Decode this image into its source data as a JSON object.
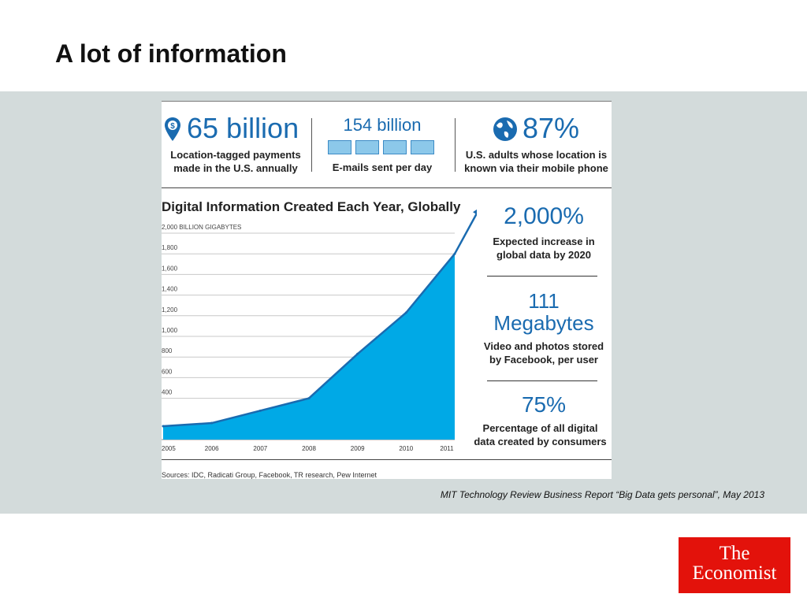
{
  "slide": {
    "title": "A lot of information",
    "credit": "MIT Technology Review Business Report “Big Data gets personal”, May 2013"
  },
  "stats": {
    "payments": {
      "value": "65 billion",
      "caption_line1": "Location-tagged payments",
      "caption_line2": "made in the U.S. annually",
      "icon": "location-pin-icon"
    },
    "emails": {
      "value": "154 billion",
      "caption": "E-mails sent per day",
      "icon": "envelope-icon"
    },
    "adults": {
      "value": "87%",
      "caption_line1": "U.S. adults whose location is",
      "caption_line2": "known via their mobile phone",
      "icon": "globe-icon"
    },
    "increase": {
      "value": "2,000%",
      "caption_line1": "Expected increase in",
      "caption_line2": "global data by 2020"
    },
    "megabytes": {
      "value_line1": "111",
      "value_line2": "Megabytes",
      "caption_line1": "Video and photos stored",
      "caption_line2": "by Facebook, per user"
    },
    "consumers": {
      "value": "75%",
      "caption_line1": "Percentage of all digital",
      "caption_line2": "data created by consumers"
    }
  },
  "chart_data": {
    "type": "area",
    "title": "Digital Information Created Each Year, Globally",
    "ylabel": "2,000 BILLION GIGABYTES",
    "x": [
      "2005",
      "2006",
      "2007",
      "2008",
      "2009",
      "2010",
      "2011"
    ],
    "values": [
      130,
      160,
      280,
      400,
      830,
      1230,
      1800
    ],
    "ylim": [
      0,
      2000
    ],
    "yticks": [
      "2,000 BILLION GIGABYTES",
      "1,800",
      "1,600",
      "1,400",
      "1,200",
      "1,000",
      "800",
      "600",
      "400"
    ],
    "ytick_values": [
      2000,
      1800,
      1600,
      1400,
      1200,
      1000,
      800,
      600,
      400
    ],
    "grid": true,
    "trend_arrow": true,
    "color": "#00a9e6"
  },
  "source": "Sources: IDC, Radicati Group, Facebook, TR research, Pew Internet",
  "logo": {
    "line1": "The",
    "line2": "Economist",
    "color": "#e3120b"
  }
}
